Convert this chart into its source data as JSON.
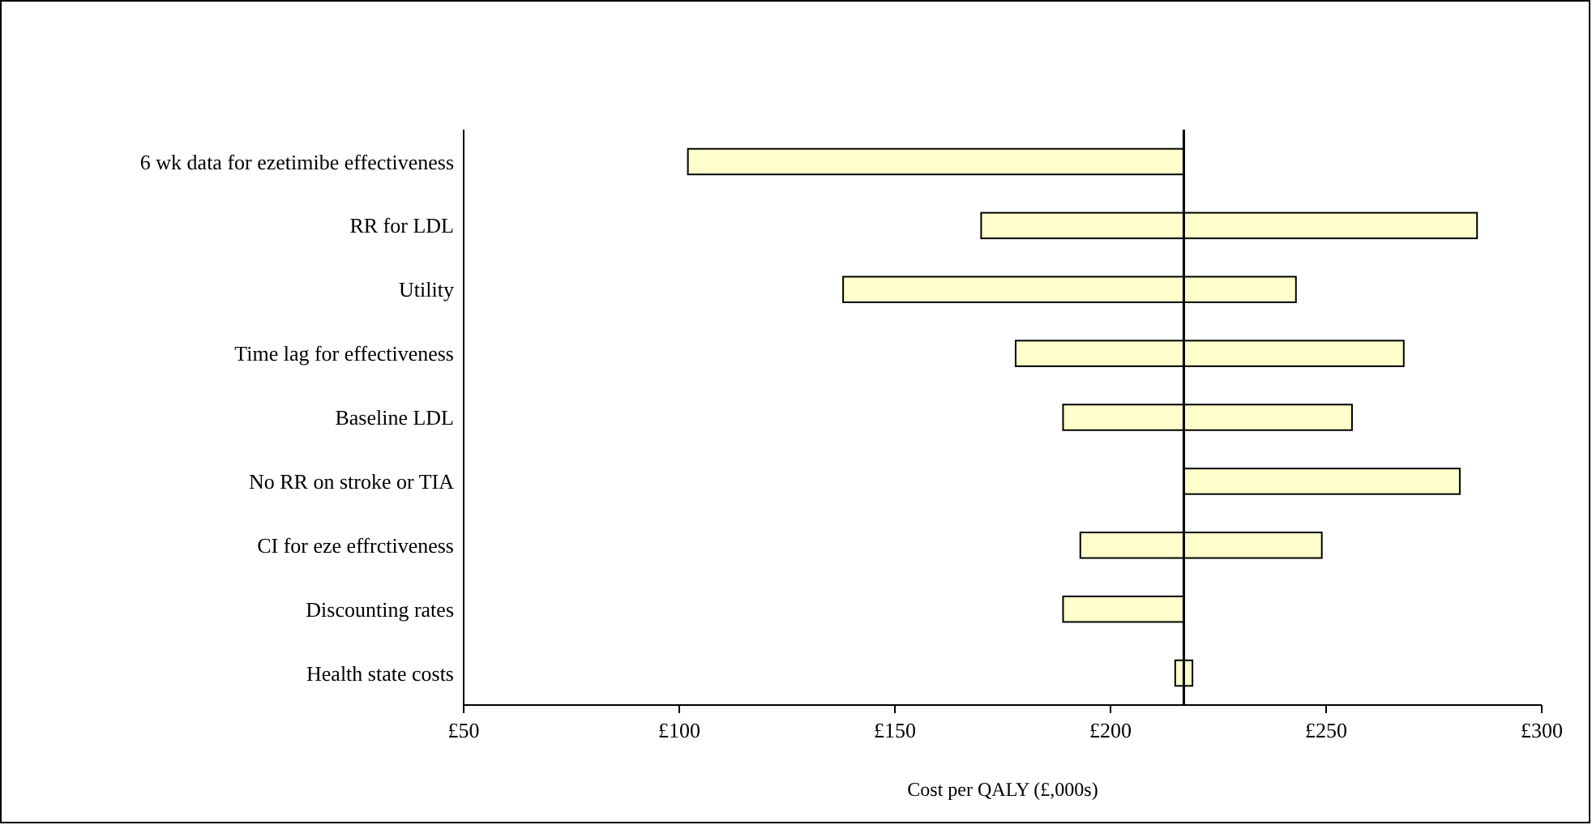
{
  "chart_data": {
    "type": "bar",
    "orientation": "horizontal",
    "xlabel": "Cost per QALY (£,000s)",
    "categories": [
      "6 wk data for ezetimibe effectiveness",
      "RR for LDL",
      "Utility",
      "Time lag for effectiveness",
      "Baseline LDL",
      "No RR on stroke or TIA",
      "CI for eze effrctiveness",
      "Discounting rates",
      "Health state costs"
    ],
    "base": [
      102,
      170,
      138,
      178,
      189,
      217,
      193,
      189,
      215
    ],
    "values": [
      115,
      115,
      105,
      90,
      67,
      64,
      56,
      28,
      4
    ],
    "color": "#ffffcc",
    "xlim": [
      50,
      300
    ],
    "xticks": [
      {
        "value": 50,
        "label": "£50"
      },
      {
        "value": 100,
        "label": "£100"
      },
      {
        "value": 150,
        "label": "£150"
      },
      {
        "value": 200,
        "label": "£200"
      },
      {
        "value": 250,
        "label": "£250"
      },
      {
        "value": 300,
        "label": "£300"
      }
    ],
    "ref_lines": [
      {
        "axis": "x",
        "value": 217,
        "color": "#000000"
      }
    ],
    "grid": false
  }
}
